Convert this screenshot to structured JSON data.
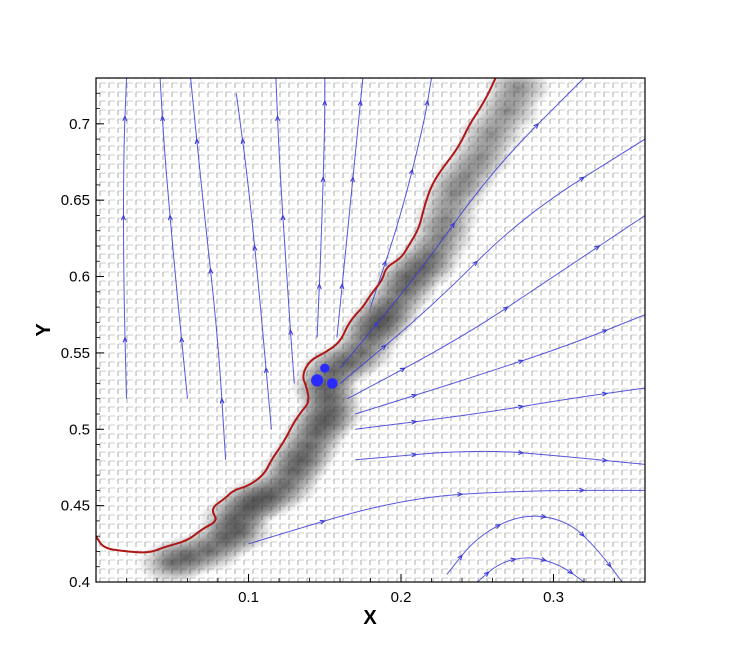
{
  "chart_data": {
    "type": "streamline_vector_field",
    "xlabel": "X",
    "ylabel": "Y",
    "xlim": [
      0.0,
      0.36
    ],
    "ylim": [
      0.4,
      0.73
    ],
    "x_ticks": [
      0.1,
      0.2,
      0.3
    ],
    "x_tick_labels": [
      "0.1",
      "0.2",
      "0.3"
    ],
    "y_ticks": [
      0.4,
      0.45,
      0.5,
      0.55,
      0.6,
      0.65,
      0.7
    ],
    "y_tick_labels": [
      "0.4",
      "0.45",
      "0.5",
      "0.55",
      "0.6",
      "0.65",
      "0.7"
    ],
    "grid": false,
    "colors": {
      "interface": "#b01818",
      "streamline": "#3a3ad8",
      "vector": "#555555",
      "bubble": "#2a2aff",
      "axes": "#000000"
    },
    "series": [
      {
        "kind": "interface_line",
        "points": [
          [
            0.0,
            0.43
          ],
          [
            0.005,
            0.422
          ],
          [
            0.02,
            0.42
          ],
          [
            0.035,
            0.419
          ],
          [
            0.045,
            0.423
          ],
          [
            0.06,
            0.427
          ],
          [
            0.07,
            0.435
          ],
          [
            0.08,
            0.44
          ],
          [
            0.075,
            0.448
          ],
          [
            0.085,
            0.455
          ],
          [
            0.09,
            0.46
          ],
          [
            0.1,
            0.463
          ],
          [
            0.11,
            0.47
          ],
          [
            0.115,
            0.48
          ],
          [
            0.12,
            0.487
          ],
          [
            0.125,
            0.495
          ],
          [
            0.13,
            0.505
          ],
          [
            0.135,
            0.512
          ],
          [
            0.14,
            0.518
          ],
          [
            0.138,
            0.528
          ],
          [
            0.135,
            0.535
          ],
          [
            0.14,
            0.545
          ],
          [
            0.15,
            0.55
          ],
          [
            0.16,
            0.557
          ],
          [
            0.165,
            0.568
          ],
          [
            0.17,
            0.575
          ],
          [
            0.175,
            0.58
          ],
          [
            0.18,
            0.588
          ],
          [
            0.188,
            0.598
          ],
          [
            0.19,
            0.606
          ],
          [
            0.2,
            0.612
          ],
          [
            0.205,
            0.62
          ],
          [
            0.212,
            0.632
          ],
          [
            0.215,
            0.645
          ],
          [
            0.22,
            0.66
          ],
          [
            0.228,
            0.672
          ],
          [
            0.238,
            0.685
          ],
          [
            0.245,
            0.7
          ],
          [
            0.255,
            0.715
          ],
          [
            0.262,
            0.73
          ]
        ]
      },
      {
        "kind": "streamline",
        "points": [
          [
            0.02,
            0.52
          ],
          [
            0.018,
            0.6
          ],
          [
            0.018,
            0.68
          ],
          [
            0.02,
            0.73
          ]
        ]
      },
      {
        "kind": "streamline",
        "points": [
          [
            0.06,
            0.52
          ],
          [
            0.052,
            0.6
          ],
          [
            0.045,
            0.68
          ],
          [
            0.042,
            0.73
          ]
        ]
      },
      {
        "kind": "streamline",
        "points": [
          [
            0.085,
            0.48
          ],
          [
            0.08,
            0.56
          ],
          [
            0.07,
            0.65
          ],
          [
            0.062,
            0.73
          ]
        ]
      },
      {
        "kind": "streamline",
        "points": [
          [
            0.115,
            0.5
          ],
          [
            0.108,
            0.58
          ],
          [
            0.1,
            0.66
          ],
          [
            0.092,
            0.72
          ]
        ]
      },
      {
        "kind": "streamline",
        "points": [
          [
            0.13,
            0.53
          ],
          [
            0.125,
            0.6
          ],
          [
            0.12,
            0.68
          ],
          [
            0.118,
            0.73
          ]
        ]
      },
      {
        "kind": "streamline",
        "points": [
          [
            0.145,
            0.56
          ],
          [
            0.148,
            0.63
          ],
          [
            0.15,
            0.7
          ],
          [
            0.15,
            0.73
          ]
        ]
      },
      {
        "kind": "streamline",
        "points": [
          [
            0.158,
            0.56
          ],
          [
            0.165,
            0.63
          ],
          [
            0.172,
            0.7
          ],
          [
            0.175,
            0.73
          ]
        ]
      },
      {
        "kind": "streamline",
        "points": [
          [
            0.18,
            0.58
          ],
          [
            0.2,
            0.64
          ],
          [
            0.215,
            0.7
          ],
          [
            0.22,
            0.73
          ]
        ]
      },
      {
        "kind": "streamline",
        "points": [
          [
            0.16,
            0.54
          ],
          [
            0.21,
            0.6
          ],
          [
            0.26,
            0.67
          ],
          [
            0.32,
            0.73
          ]
        ]
      },
      {
        "kind": "streamline",
        "points": [
          [
            0.16,
            0.53
          ],
          [
            0.22,
            0.58
          ],
          [
            0.28,
            0.64
          ],
          [
            0.36,
            0.69
          ]
        ]
      },
      {
        "kind": "streamline",
        "points": [
          [
            0.165,
            0.52
          ],
          [
            0.24,
            0.56
          ],
          [
            0.3,
            0.6
          ],
          [
            0.36,
            0.64
          ]
        ]
      },
      {
        "kind": "streamline",
        "points": [
          [
            0.17,
            0.51
          ],
          [
            0.25,
            0.535
          ],
          [
            0.31,
            0.555
          ],
          [
            0.36,
            0.575
          ]
        ]
      },
      {
        "kind": "streamline",
        "points": [
          [
            0.17,
            0.5
          ],
          [
            0.25,
            0.51
          ],
          [
            0.31,
            0.52
          ],
          [
            0.36,
            0.527
          ]
        ]
      },
      {
        "kind": "streamline",
        "points": [
          [
            0.17,
            0.48
          ],
          [
            0.25,
            0.487
          ],
          [
            0.31,
            0.482
          ],
          [
            0.36,
            0.477
          ]
        ]
      },
      {
        "kind": "streamline",
        "points": [
          [
            0.1,
            0.425
          ],
          [
            0.2,
            0.455
          ],
          [
            0.28,
            0.46
          ],
          [
            0.36,
            0.46
          ]
        ]
      },
      {
        "kind": "streamline",
        "points": [
          [
            0.23,
            0.405
          ],
          [
            0.25,
            0.43
          ],
          [
            0.28,
            0.445
          ],
          [
            0.31,
            0.44
          ],
          [
            0.33,
            0.42
          ],
          [
            0.345,
            0.4
          ]
        ]
      },
      {
        "kind": "streamline",
        "points": [
          [
            0.25,
            0.4
          ],
          [
            0.265,
            0.413
          ],
          [
            0.285,
            0.417
          ],
          [
            0.305,
            0.411
          ],
          [
            0.32,
            0.4
          ]
        ]
      }
    ],
    "bubbles": [
      {
        "x": 0.145,
        "y": 0.532,
        "r": 0.004
      },
      {
        "x": 0.15,
        "y": 0.54,
        "r": 0.003
      },
      {
        "x": 0.155,
        "y": 0.53,
        "r": 0.0035
      }
    ]
  }
}
